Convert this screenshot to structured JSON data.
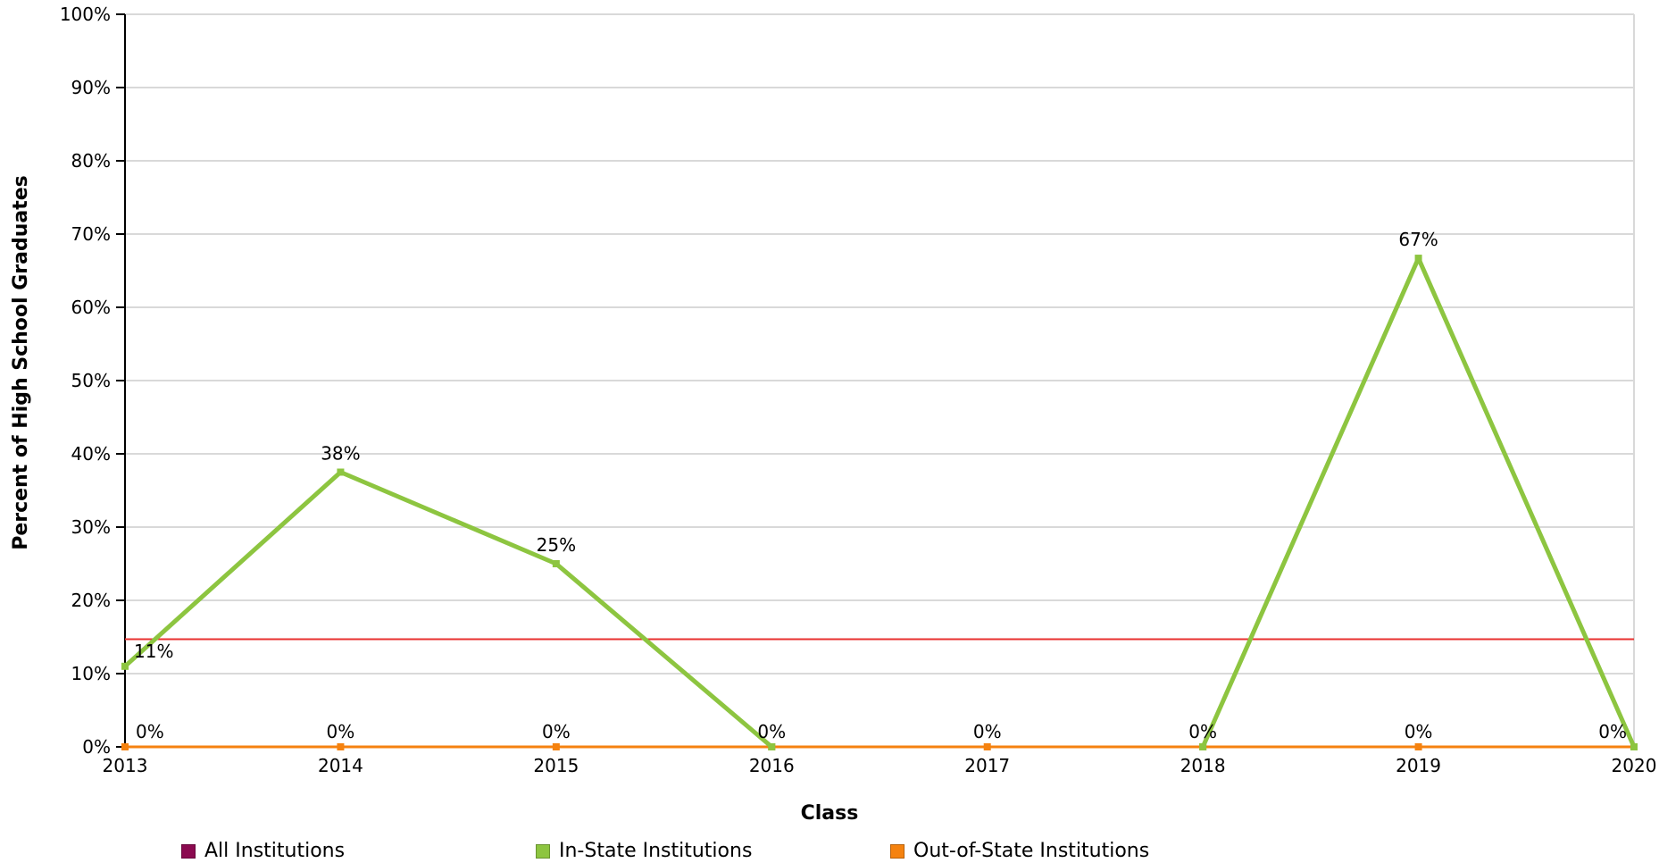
{
  "chart_data": {
    "type": "line",
    "title": "",
    "xlabel": "Class",
    "ylabel": "Percent of High School Graduates",
    "categories": [
      "2013",
      "2014",
      "2015",
      "2016",
      "2017",
      "2018",
      "2019",
      "2020"
    ],
    "ylim": [
      0,
      100
    ],
    "yticks": [
      "0%",
      "10%",
      "20%",
      "30%",
      "40%",
      "50%",
      "60%",
      "70%",
      "80%",
      "90%",
      "100%"
    ],
    "grid": true,
    "reference_line": {
      "value": 14.7,
      "color": "#e8312f"
    },
    "series": [
      {
        "name": "All Institutions",
        "color": "#8b0a50",
        "values": [
          null,
          null,
          null,
          null,
          null,
          null,
          null,
          null
        ],
        "labels": []
      },
      {
        "name": "In-State Institutions",
        "color": "#8dc540",
        "values": [
          11,
          37.5,
          25,
          0,
          null,
          0,
          66.7,
          0
        ],
        "labels": [
          "11%",
          "38%",
          "25%",
          "0%",
          "",
          "0%",
          "67%",
          "0%"
        ]
      },
      {
        "name": "Out-of-State Institutions",
        "color": "#f5820f",
        "values": [
          0,
          0,
          0,
          0,
          0,
          0,
          0,
          0
        ],
        "labels": [
          "0%",
          "0%",
          "0%",
          "0%",
          "0%",
          "0%",
          "0%",
          "0%"
        ]
      }
    ],
    "legend_position": "bottom"
  }
}
